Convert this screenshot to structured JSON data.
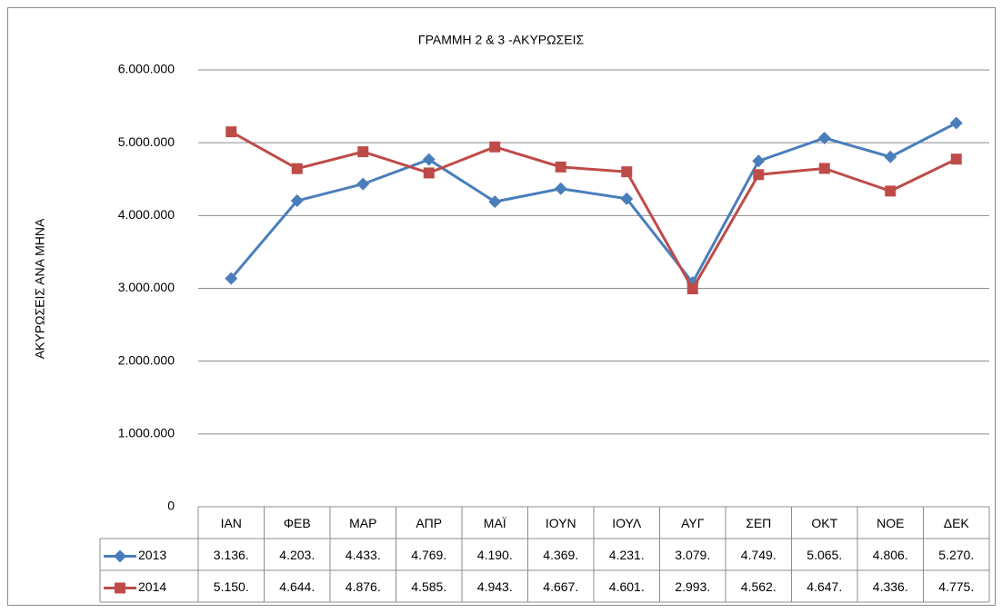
{
  "chart_data": {
    "type": "line",
    "title": "ΓΡΑΜΜΗ  2 & 3 -ΑΚΥΡΩΣΕΙΣ",
    "y_label": "ΑΚΥΡΩΣΕΙΣ ΑΝΑ ΜΗΝΑ",
    "categories": [
      "ΙΑΝ",
      "ΦΕΒ",
      "ΜΑΡ",
      "ΑΠΡ",
      "ΜΑΪ",
      "ΙΟΥΝ",
      "ΙΟΥΛ",
      "ΑΥΓ",
      "ΣΕΠ",
      "ΟΚΤ",
      "ΝΟΕ",
      "ΔΕΚ"
    ],
    "series": [
      {
        "name": "2013",
        "color": "#4a7ebb",
        "marker": "diamond",
        "values": [
          3136000,
          4203000,
          4433000,
          4769000,
          4190000,
          4369000,
          4231000,
          3079000,
          4749000,
          5065000,
          4806000,
          5270000
        ],
        "value_labels": [
          "3.136.",
          "4.203.",
          "4.433.",
          "4.769.",
          "4.190.",
          "4.369.",
          "4.231.",
          "3.079.",
          "4.749.",
          "5.065.",
          "4.806.",
          "5.270."
        ]
      },
      {
        "name": "2014",
        "color": "#be4b48",
        "marker": "square",
        "values": [
          5150000,
          4644000,
          4876000,
          4585000,
          4943000,
          4667000,
          4601000,
          2993000,
          4562000,
          4647000,
          4336000,
          4775000
        ],
        "value_labels": [
          "5.150.",
          "4.644.",
          "4.876.",
          "4.585.",
          "4.943.",
          "4.667.",
          "4.601.",
          "2.993.",
          "4.562.",
          "4.647.",
          "4.336.",
          "4.775."
        ]
      }
    ],
    "ylim": [
      0,
      6000000
    ],
    "yticks": [
      0,
      {
        "value": 1000000,
        "label": "1.000.000"
      },
      {
        "value": 2000000,
        "label": "2.000.000"
      },
      {
        "value": 3000000,
        "label": "3.000.000"
      },
      {
        "value": 4000000,
        "label": "4.000.000"
      },
      {
        "value": 5000000,
        "label": "5.000.000"
      },
      {
        "value": 6000000,
        "label": "6.000.000"
      }
    ],
    "grid": true
  }
}
